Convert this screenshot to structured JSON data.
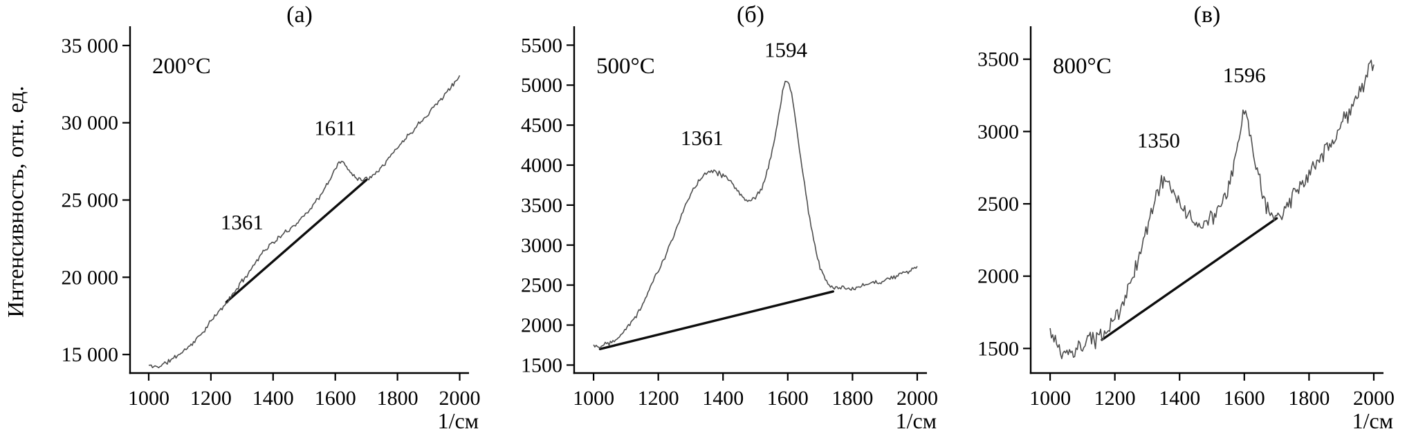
{
  "figure": {
    "ylabel": "Интенсивность, отн. ед."
  },
  "chart_data": [
    {
      "type": "line",
      "panel_label": "(а)",
      "temperature_label": "200°C",
      "x_unit_label": "1/см",
      "xlim": [
        940,
        2030
      ],
      "ylim": [
        13800,
        35800
      ],
      "xticks": [
        1000,
        1200,
        1400,
        1600,
        1800,
        2000
      ],
      "yticks": [
        {
          "v": 15000,
          "label": "15 000"
        },
        {
          "v": 20000,
          "label": "20 000"
        },
        {
          "v": 25000,
          "label": "25 000"
        },
        {
          "v": 30000,
          "label": "30 000"
        },
        {
          "v": 35000,
          "label": "35 000"
        }
      ],
      "peak_annotations": [
        {
          "label": "1361",
          "x": 1300,
          "y": 23100
        },
        {
          "label": "1611",
          "x": 1600,
          "y": 29200
        }
      ],
      "series": {
        "name": "spectrum-200C",
        "color": "#4d4d4d",
        "anchors": [
          [
            1000,
            14300
          ],
          [
            1015,
            14200
          ],
          [
            1035,
            14250
          ],
          [
            1060,
            14500
          ],
          [
            1090,
            14900
          ],
          [
            1120,
            15350
          ],
          [
            1150,
            15900
          ],
          [
            1180,
            16600
          ],
          [
            1210,
            17400
          ],
          [
            1240,
            18100
          ],
          [
            1260,
            18600
          ],
          [
            1285,
            19300
          ],
          [
            1310,
            20000
          ],
          [
            1335,
            20700
          ],
          [
            1361,
            21500
          ],
          [
            1385,
            22000
          ],
          [
            1410,
            22400
          ],
          [
            1440,
            22900
          ],
          [
            1470,
            23400
          ],
          [
            1500,
            24000
          ],
          [
            1530,
            24700
          ],
          [
            1560,
            25500
          ],
          [
            1585,
            26400
          ],
          [
            1611,
            27500
          ],
          [
            1628,
            27350
          ],
          [
            1645,
            26900
          ],
          [
            1665,
            26500
          ],
          [
            1685,
            26300
          ],
          [
            1705,
            26400
          ],
          [
            1730,
            26800
          ],
          [
            1760,
            27400
          ],
          [
            1800,
            28400
          ],
          [
            1840,
            29300
          ],
          [
            1880,
            30200
          ],
          [
            1920,
            31100
          ],
          [
            1960,
            32000
          ],
          [
            2000,
            33000
          ]
        ]
      },
      "baseline": {
        "from": [
          1250,
          18400
        ],
        "to": [
          1700,
          26300
        ]
      },
      "noise_amplitude": 180,
      "seed": 11
    },
    {
      "type": "line",
      "panel_label": "(б)",
      "temperature_label": "500°C",
      "x_unit_label": "1/см",
      "xlim": [
        940,
        2030
      ],
      "ylim": [
        1400,
        5650
      ],
      "xticks": [
        1000,
        1200,
        1400,
        1600,
        1800,
        2000
      ],
      "yticks": [
        {
          "v": 1500,
          "label": "1500"
        },
        {
          "v": 2000,
          "label": "2000"
        },
        {
          "v": 2500,
          "label": "2500"
        },
        {
          "v": 3000,
          "label": "3000"
        },
        {
          "v": 3500,
          "label": "3500"
        },
        {
          "v": 4000,
          "label": "4000"
        },
        {
          "v": 4500,
          "label": "4500"
        },
        {
          "v": 5000,
          "label": "5000"
        },
        {
          "v": 5500,
          "label": "5500"
        }
      ],
      "peak_annotations": [
        {
          "label": "1361",
          "x": 1335,
          "y": 4250
        },
        {
          "label": "1594",
          "x": 1594,
          "y": 5350
        }
      ],
      "series": {
        "name": "spectrum-500C",
        "color": "#4d4d4d",
        "anchors": [
          [
            1000,
            1760
          ],
          [
            1012,
            1725
          ],
          [
            1025,
            1750
          ],
          [
            1045,
            1780
          ],
          [
            1065,
            1820
          ],
          [
            1085,
            1890
          ],
          [
            1105,
            1980
          ],
          [
            1125,
            2080
          ],
          [
            1145,
            2210
          ],
          [
            1165,
            2380
          ],
          [
            1185,
            2560
          ],
          [
            1205,
            2720
          ],
          [
            1225,
            2900
          ],
          [
            1245,
            3080
          ],
          [
            1265,
            3300
          ],
          [
            1285,
            3500
          ],
          [
            1305,
            3680
          ],
          [
            1325,
            3810
          ],
          [
            1345,
            3900
          ],
          [
            1361,
            3940
          ],
          [
            1380,
            3910
          ],
          [
            1400,
            3870
          ],
          [
            1420,
            3800
          ],
          [
            1440,
            3700
          ],
          [
            1458,
            3610
          ],
          [
            1472,
            3570
          ],
          [
            1486,
            3560
          ],
          [
            1500,
            3600
          ],
          [
            1515,
            3680
          ],
          [
            1530,
            3820
          ],
          [
            1545,
            4050
          ],
          [
            1560,
            4350
          ],
          [
            1575,
            4700
          ],
          [
            1585,
            4920
          ],
          [
            1594,
            5080
          ],
          [
            1603,
            5020
          ],
          [
            1612,
            4870
          ],
          [
            1622,
            4620
          ],
          [
            1635,
            4230
          ],
          [
            1650,
            3800
          ],
          [
            1665,
            3400
          ],
          [
            1680,
            3050
          ],
          [
            1695,
            2790
          ],
          [
            1710,
            2620
          ],
          [
            1725,
            2520
          ],
          [
            1740,
            2470
          ],
          [
            1760,
            2450
          ],
          [
            1790,
            2460
          ],
          [
            1820,
            2480
          ],
          [
            1850,
            2510
          ],
          [
            1880,
            2540
          ],
          [
            1910,
            2580
          ],
          [
            1940,
            2620
          ],
          [
            1970,
            2670
          ],
          [
            2000,
            2720
          ]
        ]
      },
      "baseline": {
        "from": [
          1020,
          1700
        ],
        "to": [
          1740,
          2420
        ]
      },
      "noise_amplitude": 40,
      "seed": 22
    },
    {
      "type": "line",
      "panel_label": "(в)",
      "temperature_label": "800°C",
      "x_unit_label": "1/см",
      "xlim": [
        940,
        2030
      ],
      "ylim": [
        1330,
        3680
      ],
      "xticks": [
        1000,
        1200,
        1400,
        1600,
        1800,
        2000
      ],
      "yticks": [
        {
          "v": 1500,
          "label": "1500"
        },
        {
          "v": 2000,
          "label": "2000"
        },
        {
          "v": 2500,
          "label": "2500"
        },
        {
          "v": 3000,
          "label": "3000"
        },
        {
          "v": 3500,
          "label": "3500"
        }
      ],
      "peak_annotations": [
        {
          "label": "1350",
          "x": 1335,
          "y": 2890
        },
        {
          "label": "1596",
          "x": 1600,
          "y": 3340
        }
      ],
      "series": {
        "name": "spectrum-800C",
        "color": "#4d4d4d",
        "anchors": [
          [
            1000,
            1620
          ],
          [
            1012,
            1555
          ],
          [
            1025,
            1500
          ],
          [
            1040,
            1465
          ],
          [
            1055,
            1450
          ],
          [
            1070,
            1455
          ],
          [
            1085,
            1490
          ],
          [
            1100,
            1520
          ],
          [
            1115,
            1545
          ],
          [
            1130,
            1560
          ],
          [
            1145,
            1565
          ],
          [
            1160,
            1580
          ],
          [
            1180,
            1630
          ],
          [
            1200,
            1700
          ],
          [
            1220,
            1790
          ],
          [
            1240,
            1900
          ],
          [
            1260,
            2030
          ],
          [
            1280,
            2180
          ],
          [
            1300,
            2340
          ],
          [
            1320,
            2500
          ],
          [
            1335,
            2600
          ],
          [
            1350,
            2680
          ],
          [
            1365,
            2650
          ],
          [
            1380,
            2580
          ],
          [
            1400,
            2500
          ],
          [
            1420,
            2440
          ],
          [
            1440,
            2390
          ],
          [
            1460,
            2360
          ],
          [
            1475,
            2350
          ],
          [
            1490,
            2380
          ],
          [
            1505,
            2420
          ],
          [
            1520,
            2460
          ],
          [
            1535,
            2510
          ],
          [
            1550,
            2590
          ],
          [
            1565,
            2720
          ],
          [
            1580,
            2900
          ],
          [
            1590,
            3060
          ],
          [
            1596,
            3150
          ],
          [
            1605,
            3100
          ],
          [
            1615,
            3010
          ],
          [
            1628,
            2870
          ],
          [
            1642,
            2720
          ],
          [
            1656,
            2580
          ],
          [
            1670,
            2480
          ],
          [
            1684,
            2420
          ],
          [
            1698,
            2400
          ],
          [
            1715,
            2430
          ],
          [
            1735,
            2490
          ],
          [
            1760,
            2570
          ],
          [
            1790,
            2660
          ],
          [
            1820,
            2760
          ],
          [
            1850,
            2860
          ],
          [
            1880,
            2960
          ],
          [
            1910,
            3080
          ],
          [
            1940,
            3200
          ],
          [
            1970,
            3340
          ],
          [
            2000,
            3490
          ]
        ]
      },
      "baseline": {
        "from": [
          1160,
          1560
        ],
        "to": [
          1700,
          2400
        ]
      },
      "noise_amplitude": 70,
      "seed": 33
    }
  ]
}
